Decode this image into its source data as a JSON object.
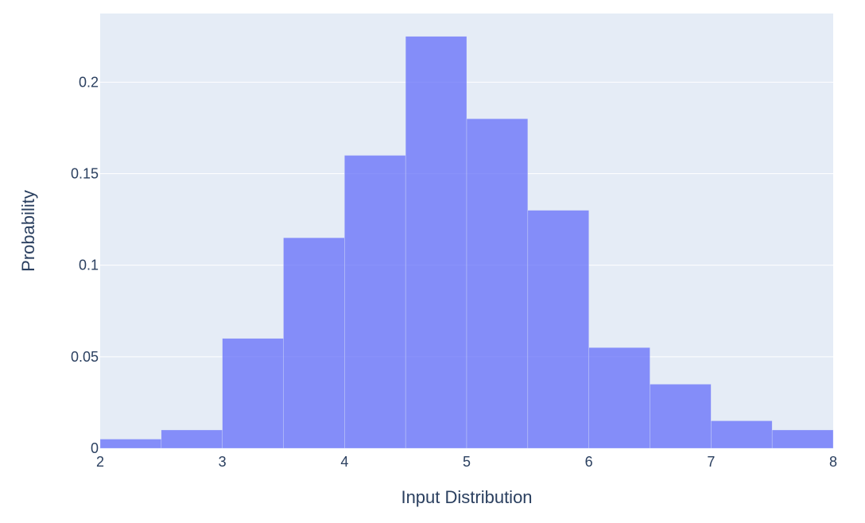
{
  "chart_data": {
    "type": "bar",
    "subtype": "histogram",
    "xlabel": "Input Distribution",
    "ylabel": "Probability",
    "xlim": [
      2,
      8
    ],
    "ylim": [
      0,
      0.2375
    ],
    "x_ticks": [
      2,
      3,
      4,
      5,
      6,
      7,
      8
    ],
    "x_tick_labels": [
      "2",
      "3",
      "4",
      "5",
      "6",
      "7",
      "8"
    ],
    "y_ticks": [
      0,
      0.05,
      0.1,
      0.15,
      0.2
    ],
    "y_tick_labels": [
      "0",
      "0.05",
      "0.1",
      "0.15",
      "0.2"
    ],
    "bins": [
      {
        "start": 2.0,
        "end": 2.5,
        "value": 0.005
      },
      {
        "start": 2.5,
        "end": 3.0,
        "value": 0.01
      },
      {
        "start": 3.0,
        "end": 3.5,
        "value": 0.06
      },
      {
        "start": 3.5,
        "end": 4.0,
        "value": 0.115
      },
      {
        "start": 4.0,
        "end": 4.5,
        "value": 0.16
      },
      {
        "start": 4.5,
        "end": 5.0,
        "value": 0.225
      },
      {
        "start": 5.0,
        "end": 5.5,
        "value": 0.18
      },
      {
        "start": 5.5,
        "end": 6.0,
        "value": 0.13
      },
      {
        "start": 6.0,
        "end": 6.5,
        "value": 0.055
      },
      {
        "start": 6.5,
        "end": 7.0,
        "value": 0.035
      },
      {
        "start": 7.0,
        "end": 7.5,
        "value": 0.015
      },
      {
        "start": 7.5,
        "end": 8.0,
        "value": 0.01
      }
    ],
    "grid": true,
    "legend": "none",
    "colors": {
      "plot_background": "#e5ecf6",
      "bar": "#636efa",
      "grid": "#ffffff",
      "text": "#2a3f5f"
    }
  }
}
